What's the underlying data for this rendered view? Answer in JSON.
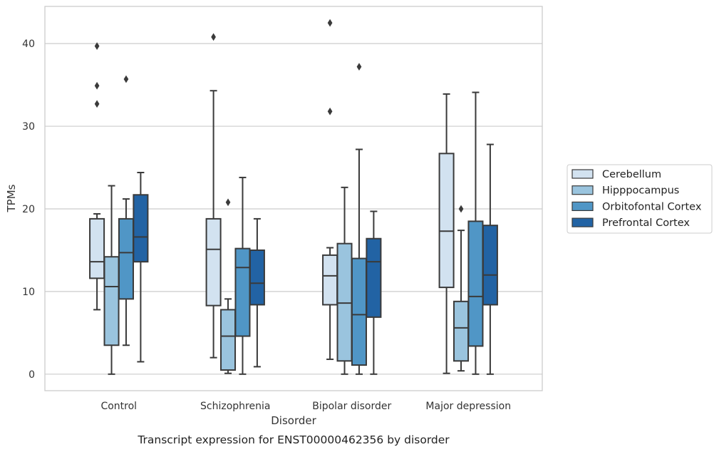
{
  "chart_data": {
    "type": "box",
    "title": "",
    "caption": "Transcript expression for ENST00000462356 by disorder",
    "xlabel": "Disorder",
    "ylabel": "TPMs",
    "ylim": [
      -2,
      44.5
    ],
    "yticks": [
      0,
      10,
      20,
      30,
      40
    ],
    "grid": "horizontal",
    "legend_position": "right",
    "categories": [
      "Control",
      "Schizophrenia",
      "Bipolar disorder",
      "Major depression"
    ],
    "series": [
      {
        "name": "Cerebellum",
        "color": "#d2e2f0",
        "boxes": [
          {
            "whisker_low": 7.8,
            "q1": 11.6,
            "median": 13.6,
            "q3": 18.8,
            "whisker_high": 19.4,
            "outliers": [
              32.7,
              34.9,
              39.7
            ]
          },
          {
            "whisker_low": 2.0,
            "q1": 8.3,
            "median": 15.1,
            "q3": 18.8,
            "whisker_high": 34.3,
            "outliers": [
              40.8
            ]
          },
          {
            "whisker_low": 1.8,
            "q1": 8.4,
            "median": 11.9,
            "q3": 14.4,
            "whisker_high": 15.3,
            "outliers": [
              31.8,
              42.5
            ]
          },
          {
            "whisker_low": 0.1,
            "q1": 10.5,
            "median": 17.3,
            "q3": 26.7,
            "whisker_high": 33.9,
            "outliers": []
          }
        ]
      },
      {
        "name": "Hipppocampus",
        "color": "#9ac4de",
        "boxes": [
          {
            "whisker_low": 0.0,
            "q1": 3.5,
            "median": 10.6,
            "q3": 14.2,
            "whisker_high": 22.8,
            "outliers": []
          },
          {
            "whisker_low": 0.1,
            "q1": 0.5,
            "median": 4.6,
            "q3": 7.8,
            "whisker_high": 9.1,
            "outliers": [
              20.8
            ]
          },
          {
            "whisker_low": 0.0,
            "q1": 1.6,
            "median": 8.6,
            "q3": 15.8,
            "whisker_high": 22.6,
            "outliers": []
          },
          {
            "whisker_low": 0.4,
            "q1": 1.6,
            "median": 5.6,
            "q3": 8.8,
            "whisker_high": 17.4,
            "outliers": [
              20.0
            ]
          }
        ]
      },
      {
        "name": "Orbitofontal Cortex",
        "color": "#5096c6",
        "boxes": [
          {
            "whisker_low": 3.5,
            "q1": 9.1,
            "median": 14.7,
            "q3": 18.8,
            "whisker_high": 21.2,
            "outliers": [
              35.7
            ]
          },
          {
            "whisker_low": 0.0,
            "q1": 4.6,
            "median": 12.9,
            "q3": 15.2,
            "whisker_high": 23.8,
            "outliers": []
          },
          {
            "whisker_low": 0.0,
            "q1": 1.1,
            "median": 7.2,
            "q3": 14.0,
            "whisker_high": 27.2,
            "outliers": [
              37.2
            ]
          },
          {
            "whisker_low": 0.0,
            "q1": 3.4,
            "median": 9.4,
            "q3": 18.5,
            "whisker_high": 34.1,
            "outliers": []
          }
        ]
      },
      {
        "name": "Prefrontal Cortex",
        "color": "#2263a4",
        "boxes": [
          {
            "whisker_low": 1.5,
            "q1": 13.6,
            "median": 16.6,
            "q3": 21.7,
            "whisker_high": 24.4,
            "outliers": []
          },
          {
            "whisker_low": 0.9,
            "q1": 8.4,
            "median": 11.0,
            "q3": 15.0,
            "whisker_high": 18.8,
            "outliers": []
          },
          {
            "whisker_low": 0.0,
            "q1": 6.9,
            "median": 13.6,
            "q3": 16.4,
            "whisker_high": 19.7,
            "outliers": []
          },
          {
            "whisker_low": 0.0,
            "q1": 8.4,
            "median": 12.0,
            "q3": 18.0,
            "whisker_high": 27.8,
            "outliers": []
          }
        ]
      }
    ]
  }
}
